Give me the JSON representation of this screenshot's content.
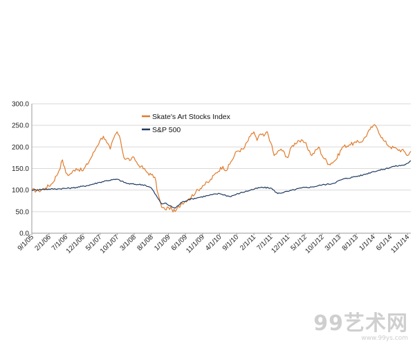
{
  "chart_data": {
    "type": "line",
    "title": "",
    "xlabel": "",
    "ylabel": "",
    "ylim": [
      0,
      300
    ],
    "yticks": [
      "0.0",
      "50.0",
      "100.0",
      "150.0",
      "200.0",
      "250.0",
      "300.0"
    ],
    "xticks": [
      "9/1/05",
      "2/1/06",
      "7/1/06",
      "12/1/06",
      "5/1/07",
      "10/1/07",
      "3/1/08",
      "8/1/08",
      "1/1/09",
      "6/1/09",
      "11/1/09",
      "4/1/10",
      "9/1/10",
      "2/1/11",
      "7/1/11",
      "12/1/11",
      "5/1/12",
      "10/1/12",
      "3/1/13",
      "8/1/13",
      "1/1/14",
      "6/1/14",
      "11/1/14"
    ],
    "grid": true,
    "legend_position": "top-center",
    "series": [
      {
        "name": "Skate's Art Stocks Index",
        "color": "#e07b2c",
        "x": [
          "9/1/05",
          "11/1/05",
          "1/1/06",
          "3/1/06",
          "5/1/06",
          "6/1/06",
          "7/1/06",
          "8/1/06",
          "10/1/06",
          "12/1/06",
          "2/1/07",
          "4/1/07",
          "5/1/07",
          "6/1/07",
          "7/1/07",
          "8/1/07",
          "9/1/07",
          "10/1/07",
          "11/1/07",
          "12/1/07",
          "2/1/08",
          "3/1/08",
          "4/1/08",
          "5/1/08",
          "7/1/08",
          "8/1/08",
          "9/1/08",
          "10/1/08",
          "11/1/08",
          "12/1/08",
          "1/1/09",
          "2/1/09",
          "3/1/09",
          "5/1/09",
          "7/1/09",
          "9/1/09",
          "11/1/09",
          "1/1/10",
          "3/1/10",
          "5/1/10",
          "6/1/10",
          "7/1/10",
          "9/1/10",
          "11/1/10",
          "1/1/11",
          "2/1/11",
          "3/1/11",
          "4/1/11",
          "5/1/11",
          "6/1/11",
          "7/1/11",
          "8/1/11",
          "10/1/11",
          "12/1/11",
          "1/1/12",
          "3/1/12",
          "5/1/12",
          "7/1/12",
          "9/1/12",
          "10/1/12",
          "12/1/12",
          "2/1/13",
          "4/1/13",
          "6/1/13",
          "8/1/13",
          "10/1/13",
          "12/1/13",
          "1/1/14",
          "2/1/14",
          "4/1/14",
          "6/1/14",
          "8/1/14",
          "10/1/14",
          "11/1/14",
          "12/1/14"
        ],
        "values": [
          100,
          98,
          105,
          115,
          145,
          170,
          140,
          135,
          150,
          145,
          170,
          200,
          215,
          225,
          210,
          195,
          220,
          235,
          215,
          175,
          170,
          175,
          160,
          155,
          140,
          135,
          130,
          90,
          60,
          55,
          60,
          55,
          50,
          70,
          80,
          95,
          110,
          120,
          140,
          155,
          145,
          160,
          190,
          195,
          225,
          235,
          215,
          230,
          225,
          235,
          210,
          180,
          195,
          175,
          200,
          215,
          210,
          180,
          200,
          180,
          160,
          170,
          200,
          205,
          210,
          215,
          240,
          250,
          245,
          215,
          200,
          195,
          190,
          180,
          190
        ]
      },
      {
        "name": "S&P 500",
        "color": "#1f3a5f",
        "x": [
          "9/1/05",
          "1/1/06",
          "5/1/06",
          "9/1/06",
          "1/1/07",
          "5/1/07",
          "7/1/07",
          "10/1/07",
          "1/1/08",
          "4/1/08",
          "6/1/08",
          "8/1/08",
          "10/1/08",
          "11/1/08",
          "12/1/08",
          "1/1/09",
          "3/1/09",
          "5/1/09",
          "7/1/09",
          "10/1/09",
          "1/1/10",
          "4/1/10",
          "7/1/10",
          "10/1/10",
          "1/1/11",
          "4/1/11",
          "7/1/11",
          "9/1/11",
          "12/1/11",
          "4/1/12",
          "7/1/12",
          "10/1/12",
          "1/1/13",
          "4/1/13",
          "7/1/13",
          "10/1/13",
          "1/1/14",
          "4/1/14",
          "7/1/14",
          "10/1/14",
          "11/1/14",
          "12/1/14"
        ],
        "values": [
          100,
          102,
          103,
          105,
          110,
          118,
          122,
          125,
          115,
          113,
          112,
          105,
          80,
          68,
          70,
          65,
          58,
          72,
          78,
          83,
          88,
          92,
          85,
          93,
          100,
          106,
          105,
          92,
          97,
          105,
          107,
          112,
          115,
          125,
          130,
          135,
          143,
          148,
          155,
          158,
          162,
          168
        ]
      }
    ]
  },
  "watermark": {
    "logo": "99艺术网",
    "url": "www.99ys.com"
  }
}
